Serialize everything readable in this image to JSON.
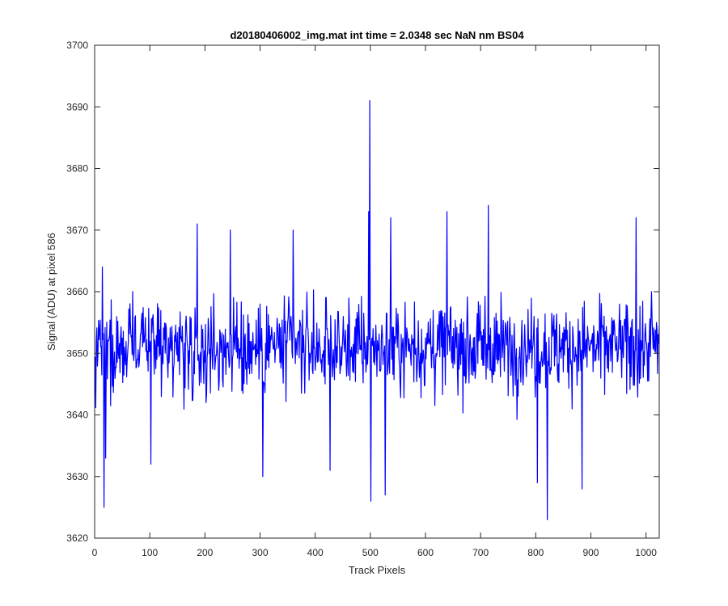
{
  "chart_data": {
    "type": "line",
    "title": "d20180406002_img.mat int time = 2.0348 sec  NaN nm BS04",
    "xlabel": "Track Pixels",
    "ylabel": "Signal (ADU) at pixel 586",
    "xlim": [
      0,
      1024
    ],
    "ylim": [
      3620,
      3700
    ],
    "xticks": [
      0,
      100,
      200,
      300,
      400,
      500,
      600,
      700,
      800,
      900,
      1000
    ],
    "yticks": [
      3620,
      3630,
      3640,
      3650,
      3660,
      3670,
      3680,
      3690,
      3700
    ],
    "grid": false,
    "legend": "none",
    "series": [
      {
        "color": "#0000ff",
        "x_start": 1,
        "x_step": 1,
        "n_points": 1024,
        "mean": 3651,
        "notable_points": [
          {
            "x": 17,
            "y": 3625
          },
          {
            "x": 20,
            "y": 3633
          },
          {
            "x": 14,
            "y": 3664
          },
          {
            "x": 102,
            "y": 3632
          },
          {
            "x": 186,
            "y": 3671
          },
          {
            "x": 246,
            "y": 3670
          },
          {
            "x": 305,
            "y": 3630
          },
          {
            "x": 360,
            "y": 3670
          },
          {
            "x": 427,
            "y": 3631
          },
          {
            "x": 497,
            "y": 3673
          },
          {
            "x": 499,
            "y": 3691
          },
          {
            "x": 501,
            "y": 3626
          },
          {
            "x": 527,
            "y": 3627
          },
          {
            "x": 537,
            "y": 3672
          },
          {
            "x": 639,
            "y": 3673
          },
          {
            "x": 714,
            "y": 3674
          },
          {
            "x": 803,
            "y": 3629
          },
          {
            "x": 821,
            "y": 3623
          },
          {
            "x": 884,
            "y": 3628
          },
          {
            "x": 982,
            "y": 3672
          },
          {
            "x": 1010,
            "y": 3660
          }
        ]
      }
    ]
  }
}
